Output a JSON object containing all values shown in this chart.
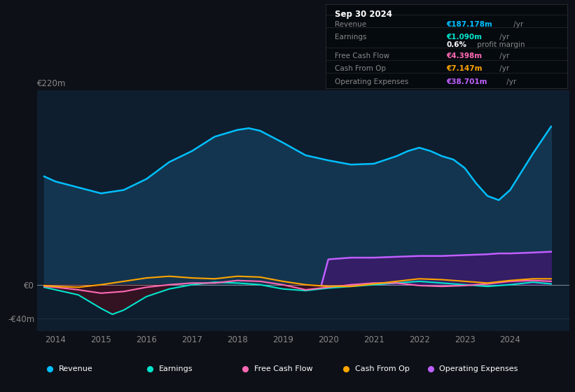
{
  "bg_color": "#0d1117",
  "plot_bg_color": "#0e1e2e",
  "title_box": {
    "date": "Sep 30 2024",
    "rows": [
      {
        "label": "Revenue",
        "value": "€187.178m",
        "unit": " /yr",
        "color": "#00bfff"
      },
      {
        "label": "Earnings",
        "value": "€1.090m",
        "unit": " /yr",
        "color": "#00e5cc"
      },
      {
        "label": "",
        "value": "0.6%",
        "unit": " profit margin",
        "color": "#ffffff"
      },
      {
        "label": "Free Cash Flow",
        "value": "€4.398m",
        "unit": " /yr",
        "color": "#ff69b4"
      },
      {
        "label": "Cash From Op",
        "value": "€7.147m",
        "unit": " /yr",
        "color": "#ffa500"
      },
      {
        "label": "Operating Expenses",
        "value": "€38.701m",
        "unit": " /yr",
        "color": "#bf5fff"
      }
    ]
  },
  "ylim": [
    -55,
    230
  ],
  "xlim": [
    2013.6,
    2025.3
  ],
  "xticks": [
    2014,
    2015,
    2016,
    2017,
    2018,
    2019,
    2020,
    2021,
    2022,
    2023,
    2024
  ],
  "ytick_220_val": 220,
  "ytick_0_val": 0,
  "ytick_n40_val": -40,
  "revenue_x": [
    2013.75,
    2014.0,
    2014.5,
    2015.0,
    2015.5,
    2016.0,
    2016.5,
    2017.0,
    2017.5,
    2018.0,
    2018.25,
    2018.5,
    2019.0,
    2019.5,
    2020.0,
    2020.5,
    2021.0,
    2021.5,
    2021.75,
    2022.0,
    2022.25,
    2022.5,
    2022.75,
    2023.0,
    2023.25,
    2023.5,
    2023.75,
    2024.0,
    2024.5,
    2024.9
  ],
  "revenue_y": [
    128,
    122,
    115,
    108,
    112,
    125,
    145,
    158,
    175,
    183,
    185,
    182,
    168,
    153,
    147,
    142,
    143,
    152,
    158,
    162,
    158,
    152,
    148,
    138,
    120,
    105,
    100,
    112,
    155,
    187
  ],
  "earnings_x": [
    2013.75,
    2014.0,
    2014.5,
    2015.0,
    2015.25,
    2015.5,
    2015.75,
    2016.0,
    2016.5,
    2017.0,
    2017.5,
    2018.0,
    2018.5,
    2019.0,
    2019.5,
    2020.0,
    2020.5,
    2021.0,
    2021.5,
    2022.0,
    2022.5,
    2023.0,
    2023.5,
    2024.0,
    2024.5,
    2024.9
  ],
  "earnings_y": [
    -3,
    -6,
    -12,
    -28,
    -35,
    -30,
    -22,
    -14,
    -5,
    0,
    3,
    2,
    0,
    -5,
    -7,
    -4,
    -2,
    0,
    2,
    4,
    2,
    0,
    -2,
    0,
    3,
    1
  ],
  "fcf_x": [
    2013.75,
    2014.0,
    2014.5,
    2015.0,
    2015.5,
    2016.0,
    2016.5,
    2017.0,
    2017.5,
    2018.0,
    2018.5,
    2019.0,
    2019.5,
    2020.0,
    2020.5,
    2021.0,
    2021.5,
    2022.0,
    2022.5,
    2023.0,
    2023.5,
    2024.0,
    2024.5,
    2024.9
  ],
  "fcf_y": [
    -2,
    -3,
    -6,
    -10,
    -8,
    -3,
    0,
    2,
    2,
    5,
    4,
    0,
    -6,
    -3,
    0,
    2,
    2,
    -1,
    -2,
    -1,
    1,
    4,
    5,
    4
  ],
  "cop_x": [
    2013.75,
    2014.0,
    2014.5,
    2015.0,
    2015.5,
    2016.0,
    2016.5,
    2017.0,
    2017.5,
    2018.0,
    2018.5,
    2019.0,
    2019.5,
    2020.0,
    2020.5,
    2021.0,
    2021.5,
    2022.0,
    2022.5,
    2023.0,
    2023.5,
    2024.0,
    2024.5,
    2024.9
  ],
  "cop_y": [
    -1,
    -2,
    -3,
    0,
    4,
    8,
    10,
    8,
    7,
    10,
    9,
    4,
    0,
    -2,
    -2,
    1,
    4,
    7,
    6,
    4,
    2,
    5,
    7,
    7
  ],
  "opex_x": [
    2019.85,
    2020.0,
    2020.5,
    2021.0,
    2021.5,
    2022.0,
    2022.5,
    2023.0,
    2023.5,
    2023.75,
    2024.0,
    2024.5,
    2024.9
  ],
  "opex_y": [
    0,
    30,
    32,
    32,
    33,
    34,
    34,
    35,
    36,
    37,
    37,
    38,
    39
  ],
  "colors": {
    "revenue": "#00bfff",
    "revenue_fill": "#163a55",
    "earnings": "#00e5cc",
    "earn_neg_fill": "#3d1020",
    "fcf": "#ff69b4",
    "cop": "#ffa500",
    "opex": "#bf5fff",
    "opex_fill": "#3a1a6a",
    "zero_line": "#cccccc"
  },
  "legend_items": [
    {
      "label": "Revenue",
      "color": "#00bfff"
    },
    {
      "label": "Earnings",
      "color": "#00e5cc"
    },
    {
      "label": "Free Cash Flow",
      "color": "#ff69b4"
    },
    {
      "label": "Cash From Op",
      "color": "#ffa500"
    },
    {
      "label": "Operating Expenses",
      "color": "#bf5fff"
    }
  ]
}
